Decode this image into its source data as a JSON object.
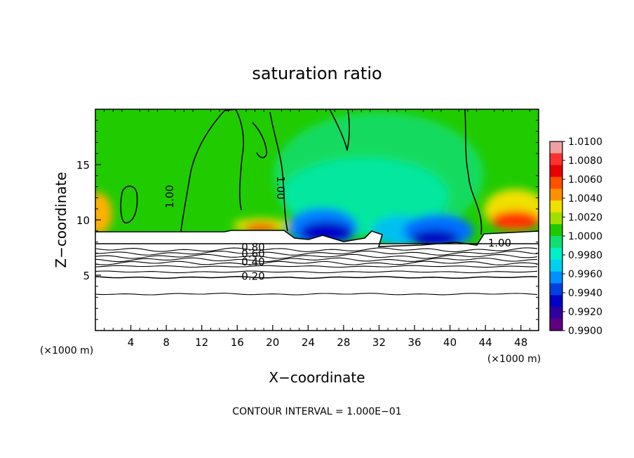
{
  "chart_data": {
    "type": "heatmap",
    "title": "saturation ratio",
    "xlabel": "X−coordinate",
    "ylabel": "Z−coordinate",
    "x_unit": "(×1000 m)",
    "y_unit": "(×1000 m)",
    "xlim": [
      0,
      50
    ],
    "ylim": [
      0,
      20
    ],
    "xticks": [
      4,
      8,
      12,
      16,
      20,
      24,
      28,
      32,
      36,
      40,
      44,
      48
    ],
    "yticks": [
      5,
      10,
      15
    ],
    "footer": "CONTOUR INTERVAL = 1.000E−01",
    "colorbar": {
      "min": 0.99,
      "max": 1.01,
      "labels": [
        "1.0100",
        "1.0080",
        "1.0060",
        "1.0040",
        "1.0020",
        "1.0000",
        "0.9980",
        "0.9960",
        "0.9940",
        "0.9920",
        "0.9900"
      ],
      "colors": [
        "#f0a0a0",
        "#ff3030",
        "#e80000",
        "#ff5000",
        "#ff9000",
        "#f0e000",
        "#a0e000",
        "#20c800",
        "#10e070",
        "#00f0c8",
        "#00d0f0",
        "#0090ff",
        "#0040e0",
        "#0000c8",
        "#3000a0",
        "#600080"
      ]
    },
    "contour_labels": [
      {
        "text": "1.00",
        "x": 8.8,
        "y": 12.1,
        "rot": -90
      },
      {
        "text": "1.00",
        "x": 20.5,
        "y": 12.9,
        "rot": 90
      },
      {
        "text": "1.00",
        "x": 45.6,
        "y": 7.6,
        "rot": 0
      },
      {
        "text": "0.80",
        "x": 17.8,
        "y": 7.2,
        "rot": 0
      },
      {
        "text": "0.60",
        "x": 17.8,
        "y": 6.6,
        "rot": 0
      },
      {
        "text": "0.40",
        "x": 17.8,
        "y": 5.9,
        "rot": 0
      },
      {
        "text": "0.20",
        "x": 17.8,
        "y": 4.6,
        "rot": 0
      }
    ],
    "contour_levels": [
      {
        "level": 0.9,
        "z": 7.3
      },
      {
        "level": 0.8,
        "z": 7.0
      },
      {
        "level": 0.7,
        "z": 6.7
      },
      {
        "level": 0.6,
        "z": 6.4
      },
      {
        "level": 0.5,
        "z": 6.1
      },
      {
        "level": 0.4,
        "z": 5.8
      },
      {
        "level": 0.3,
        "z": 5.3
      },
      {
        "level": 0.2,
        "z": 4.8
      },
      {
        "level": 0.1,
        "z": 3.3
      }
    ]
  }
}
